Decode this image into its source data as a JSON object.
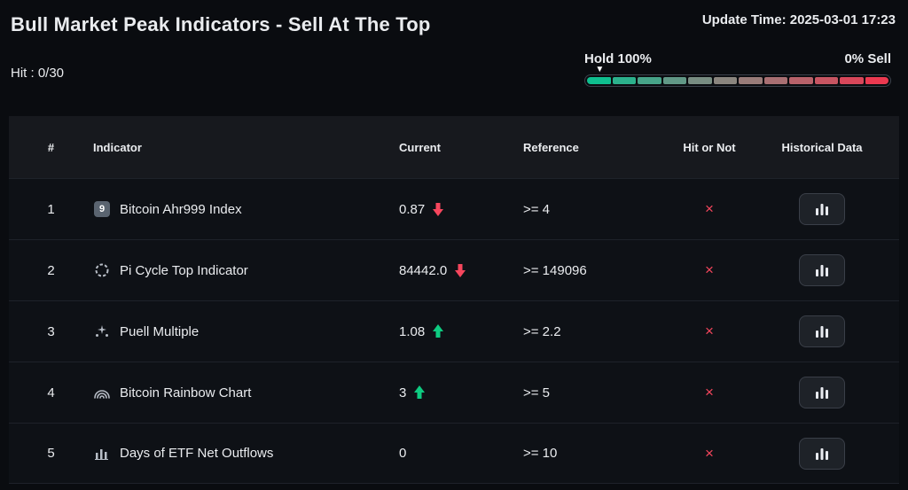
{
  "header": {
    "title": "Bull Market Peak Indicators - Sell At The Top",
    "update_time": "Update Time: 2025-03-01 17:23",
    "hit_label": "Hit : 0/30"
  },
  "gauge": {
    "left_label": "Hold 100%",
    "right_label": "0% Sell",
    "marker_position_pct": 5,
    "marker_icon": "▼",
    "segments": [
      "#0fbf8f",
      "#2cb18c",
      "#47a489",
      "#619886",
      "#788d82",
      "#8a857e",
      "#997c79",
      "#a86f72",
      "#b8626a",
      "#c75562",
      "#d8475a",
      "#ec3950"
    ]
  },
  "table": {
    "columns": [
      "#",
      "Indicator",
      "Current",
      "Reference",
      "Hit or Not",
      "Historical Data"
    ],
    "rows": [
      {
        "num": "1",
        "icon": "ahr999-badge-icon",
        "indicator": "Bitcoin Ahr999 Index",
        "current": "0.87",
        "trend": "down",
        "reference": ">= 4",
        "hit": "×"
      },
      {
        "num": "2",
        "icon": "pi-cycle-icon",
        "indicator": "Pi Cycle Top Indicator",
        "current": "84442.0",
        "trend": "down",
        "reference": ">= 149096",
        "hit": "×"
      },
      {
        "num": "3",
        "icon": "puell-sparkles-icon",
        "indicator": "Puell Multiple",
        "current": "1.08",
        "trend": "up",
        "reference": ">= 2.2",
        "hit": "×"
      },
      {
        "num": "4",
        "icon": "rainbow-icon",
        "indicator": "Bitcoin Rainbow Chart",
        "current": "3",
        "trend": "up",
        "reference": ">= 5",
        "hit": "×"
      },
      {
        "num": "5",
        "icon": "etf-bars-icon",
        "indicator": "Days of ETF Net Outflows",
        "current": "0",
        "trend": "none",
        "reference": ">= 10",
        "hit": "×"
      }
    ]
  },
  "colors": {
    "up": "#0ecb81",
    "down": "#f6465d",
    "hit_x": "#f6465d"
  }
}
